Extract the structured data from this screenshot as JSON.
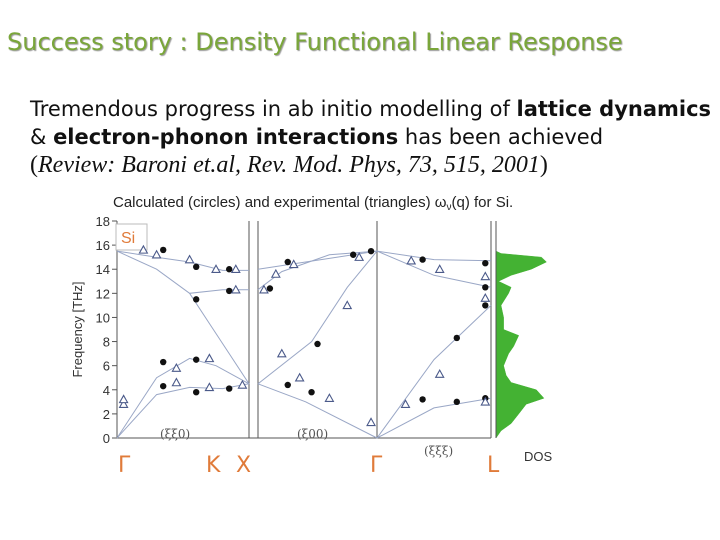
{
  "slide": {
    "title": "Success story : Density Functional Linear Response",
    "line1_pre": "Tremendous progress in ab initio modelling of ",
    "line1_bold": "lattice dynamics",
    "line2_pre": "& ",
    "line2_bold": "electron-phonon interactions",
    "line2_post": " has been achieved",
    "ref_open": "(",
    "ref_italic": "Review: Baroni et.al, Rev. Mod. Phys, 73, 515, 2001",
    "ref_close": ")"
  },
  "colors": {
    "title": "#7aa63a",
    "label_orange": "#e07b3a",
    "dos_green": "#44b233",
    "triangle": "#4b5a8a",
    "curve": "#9aa7c6"
  },
  "chart_data": {
    "type": "scatter",
    "title": "Calculated (circles) and experimental (triangles) ω",
    "title_sub": "ν",
    "title_tail": "(q) for Si.",
    "material_label": "Si",
    "ylabel": "Frequency [THz]",
    "ylim": [
      0,
      18
    ],
    "yticks": [
      "0",
      "2",
      "4",
      "6",
      "8",
      "10",
      "12",
      "14",
      "16",
      "18"
    ],
    "direction_labels": [
      "(ξξ0)",
      "(ξ00)",
      "(ξξξ)"
    ],
    "high_symmetry_points": [
      "Γ",
      "K",
      "X",
      "Γ",
      "L"
    ],
    "dos_label": "DOS",
    "panels": [
      {
        "name": "Gamma-K-X",
        "x_range": [
          0,
          1
        ],
        "curves": [
          [
            [
              0,
              0
            ],
            [
              0.3,
              3.6
            ],
            [
              0.55,
              4.2
            ],
            [
              0.8,
              4.1
            ],
            [
              1,
              4.5
            ]
          ],
          [
            [
              0,
              0
            ],
            [
              0.3,
              5.0
            ],
            [
              0.55,
              6.6
            ],
            [
              0.75,
              6.0
            ],
            [
              1,
              4.5
            ]
          ],
          [
            [
              0,
              15.5
            ],
            [
              0.3,
              15.0
            ],
            [
              0.55,
              14.6
            ],
            [
              0.8,
              13.9
            ],
            [
              1,
              13.9
            ]
          ],
          [
            [
              0,
              15.5
            ],
            [
              0.3,
              14.0
            ],
            [
              0.55,
              12.0
            ],
            [
              0.8,
              12.3
            ],
            [
              1,
              12.3
            ]
          ],
          [
            [
              0.55,
              12.0
            ],
            [
              0.7,
              9.5
            ],
            [
              0.85,
              7.0
            ],
            [
              1,
              4.5
            ]
          ]
        ],
        "circles": [
          [
            0.35,
            6.3
          ],
          [
            0.35,
            4.3
          ],
          [
            0.35,
            15.6
          ],
          [
            0.6,
            11.5
          ],
          [
            0.6,
            6.5
          ],
          [
            0.6,
            3.8
          ],
          [
            0.6,
            14.2
          ],
          [
            0.85,
            4.1
          ],
          [
            0.85,
            14.0
          ],
          [
            0.85,
            12.2
          ]
        ],
        "triangles": [
          [
            0.05,
            2.8
          ],
          [
            0.05,
            3.2
          ],
          [
            0.2,
            15.6
          ],
          [
            0.3,
            15.2
          ],
          [
            0.45,
            4.6
          ],
          [
            0.45,
            5.8
          ],
          [
            0.55,
            14.8
          ],
          [
            0.7,
            4.2
          ],
          [
            0.7,
            6.6
          ],
          [
            0.75,
            14.0
          ],
          [
            0.9,
            14.0
          ],
          [
            0.9,
            12.3
          ],
          [
            0.95,
            4.4
          ]
        ]
      },
      {
        "name": "X-Gamma",
        "x_range": [
          0,
          1
        ],
        "curves": [
          [
            [
              0,
              4.5
            ],
            [
              0.4,
              3.0
            ],
            [
              1,
              0
            ]
          ],
          [
            [
              0,
              4.5
            ],
            [
              0.45,
              8.0
            ],
            [
              0.75,
              12.5
            ],
            [
              1,
              15.5
            ]
          ],
          [
            [
              0,
              12.3
            ],
            [
              0.2,
              13.8
            ],
            [
              0.6,
              15.2
            ],
            [
              1,
              15.5
            ]
          ],
          [
            [
              0,
              14.0
            ],
            [
              0.4,
              14.6
            ],
            [
              1,
              15.5
            ]
          ]
        ],
        "circles": [
          [
            0.1,
            12.4
          ],
          [
            0.25,
            4.4
          ],
          [
            0.25,
            14.6
          ],
          [
            0.45,
            3.8
          ],
          [
            0.5,
            7.8
          ],
          [
            0.8,
            15.2
          ],
          [
            0.95,
            15.5
          ]
        ],
        "triangles": [
          [
            0.05,
            12.3
          ],
          [
            0.15,
            13.6
          ],
          [
            0.2,
            7.0
          ],
          [
            0.3,
            14.4
          ],
          [
            0.35,
            5.0
          ],
          [
            0.6,
            3.3
          ],
          [
            0.75,
            11.0
          ],
          [
            0.85,
            15.0
          ],
          [
            0.95,
            1.3
          ]
        ]
      },
      {
        "name": "Gamma-L",
        "x_range": [
          0,
          1
        ],
        "curves": [
          [
            [
              0,
              0
            ],
            [
              0.5,
              2.5
            ],
            [
              1,
              3.3
            ]
          ],
          [
            [
              0,
              0
            ],
            [
              0.5,
              6.5
            ],
            [
              1,
              11.0
            ]
          ],
          [
            [
              0,
              15.5
            ],
            [
              0.5,
              14.8
            ],
            [
              1,
              14.7
            ]
          ],
          [
            [
              0,
              15.5
            ],
            [
              0.5,
              13.5
            ],
            [
              1,
              12.5
            ]
          ]
        ],
        "circles": [
          [
            0.4,
            3.2
          ],
          [
            0.4,
            14.8
          ],
          [
            0.7,
            8.3
          ],
          [
            0.7,
            3.0
          ],
          [
            0.95,
            14.5
          ],
          [
            0.95,
            12.5
          ],
          [
            0.95,
            11.0
          ],
          [
            0.95,
            3.3
          ]
        ],
        "triangles": [
          [
            0.25,
            2.8
          ],
          [
            0.3,
            14.7
          ],
          [
            0.55,
            5.3
          ],
          [
            0.55,
            14.0
          ],
          [
            0.95,
            13.4
          ],
          [
            0.95,
            11.6
          ],
          [
            0.95,
            3.0
          ]
        ]
      }
    ],
    "dos": [
      [
        0,
        0
      ],
      [
        0.6,
        0.1
      ],
      [
        1.2,
        0.3
      ],
      [
        2,
        0.45
      ],
      [
        2.8,
        0.6
      ],
      [
        3.3,
        0.95
      ],
      [
        4.0,
        0.8
      ],
      [
        4.6,
        0.3
      ],
      [
        5.2,
        0.2
      ],
      [
        6,
        0.15
      ],
      [
        7,
        0.25
      ],
      [
        7.6,
        0.35
      ],
      [
        8.5,
        0.45
      ],
      [
        9,
        0.15
      ],
      [
        10,
        0.15
      ],
      [
        11,
        0.1
      ],
      [
        12,
        0.25
      ],
      [
        12.5,
        0.3
      ],
      [
        13,
        0.05
      ],
      [
        13.5,
        0.3
      ],
      [
        14,
        0.7
      ],
      [
        14.6,
        1.0
      ],
      [
        15,
        0.9
      ],
      [
        15.3,
        0.1
      ],
      [
        15.5,
        0
      ]
    ]
  }
}
